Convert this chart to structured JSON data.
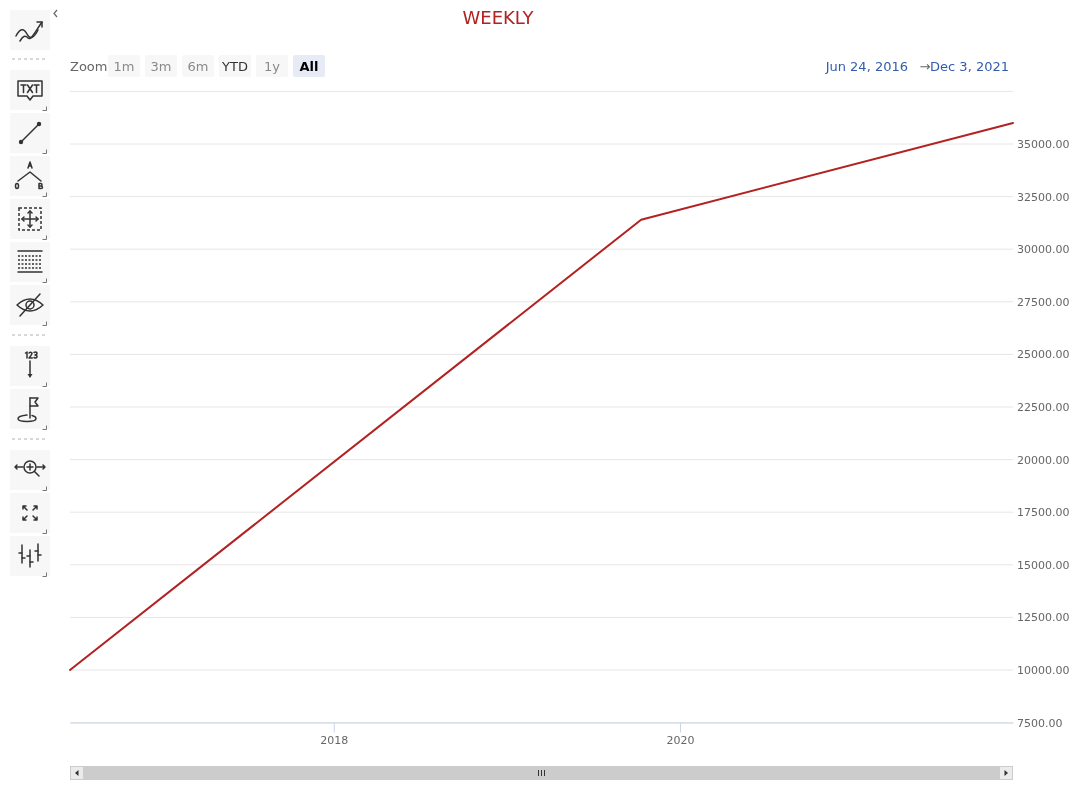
{
  "chart_data": {
    "type": "line",
    "title": "WEEKLY",
    "x": [
      "2016-06-24",
      "2019-10-11",
      "2021-12-03"
    ],
    "series": [
      {
        "color": "#b22222",
        "values": [
          10000,
          31400,
          36000
        ]
      }
    ],
    "xlim": [
      "2016-06-24",
      "2021-12-03"
    ],
    "xticks": [
      "2018",
      "2020"
    ],
    "ylim": [
      7500,
      37500
    ],
    "yticks": [
      {
        "value": 7500,
        "label": "7500.00"
      },
      {
        "value": 10000,
        "label": "10000.00"
      },
      {
        "value": 12500,
        "label": "12500.00"
      },
      {
        "value": 15000,
        "label": "15000.00"
      },
      {
        "value": 17500,
        "label": "17500.00"
      },
      {
        "value": 20000,
        "label": "20000.00"
      },
      {
        "value": 22500,
        "label": "22500.00"
      },
      {
        "value": 25000,
        "label": "25000.00"
      },
      {
        "value": 27500,
        "label": "27500.00"
      },
      {
        "value": 30000,
        "label": "30000.00"
      },
      {
        "value": 32500,
        "label": "32500.00"
      },
      {
        "value": 35000,
        "label": "35000.00"
      },
      {
        "value": 37500,
        "label": null
      }
    ],
    "grid": "y",
    "annotations": [
      "Zoom",
      "1m",
      "3m",
      "6m",
      "YTD",
      "1y",
      "All",
      "Jun 24, 2016",
      "→",
      "Dec 3, 2021"
    ]
  }
}
